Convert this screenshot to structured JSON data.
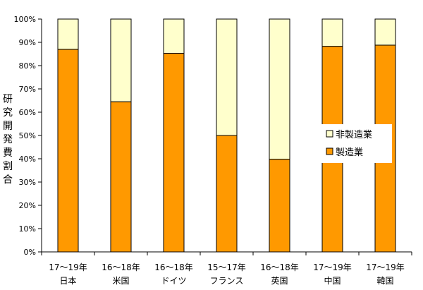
{
  "chart_data": {
    "type": "bar",
    "stacked": true,
    "percent": true,
    "ylabel": "研究開発費割合",
    "ylim": [
      0,
      100
    ],
    "yticks": [
      "0%",
      "10%",
      "20%",
      "30%",
      "40%",
      "50%",
      "60%",
      "70%",
      "80%",
      "90%",
      "100%"
    ],
    "categories": [
      {
        "period": "17〜19年",
        "name": "日本"
      },
      {
        "period": "16〜18年",
        "name": "米国"
      },
      {
        "period": "16〜18年",
        "name": "ドイツ"
      },
      {
        "period": "15〜17年",
        "name": "フランス"
      },
      {
        "period": "16〜18年",
        "name": "英国"
      },
      {
        "period": "17〜19年",
        "name": "中国"
      },
      {
        "period": "17〜19年",
        "name": "韓国"
      }
    ],
    "series": [
      {
        "name": "製造業",
        "color": "#FF9900",
        "values": [
          87,
          64.5,
          85.3,
          50,
          39.8,
          88.3,
          88.8
        ]
      },
      {
        "name": "非製造業",
        "color": "#FFFFCC",
        "values": [
          13,
          35.5,
          14.7,
          50,
          60.2,
          11.7,
          11.2
        ]
      }
    ],
    "legend": {
      "position": "right",
      "items": [
        "非製造業",
        "製造業"
      ]
    },
    "grid": false
  }
}
